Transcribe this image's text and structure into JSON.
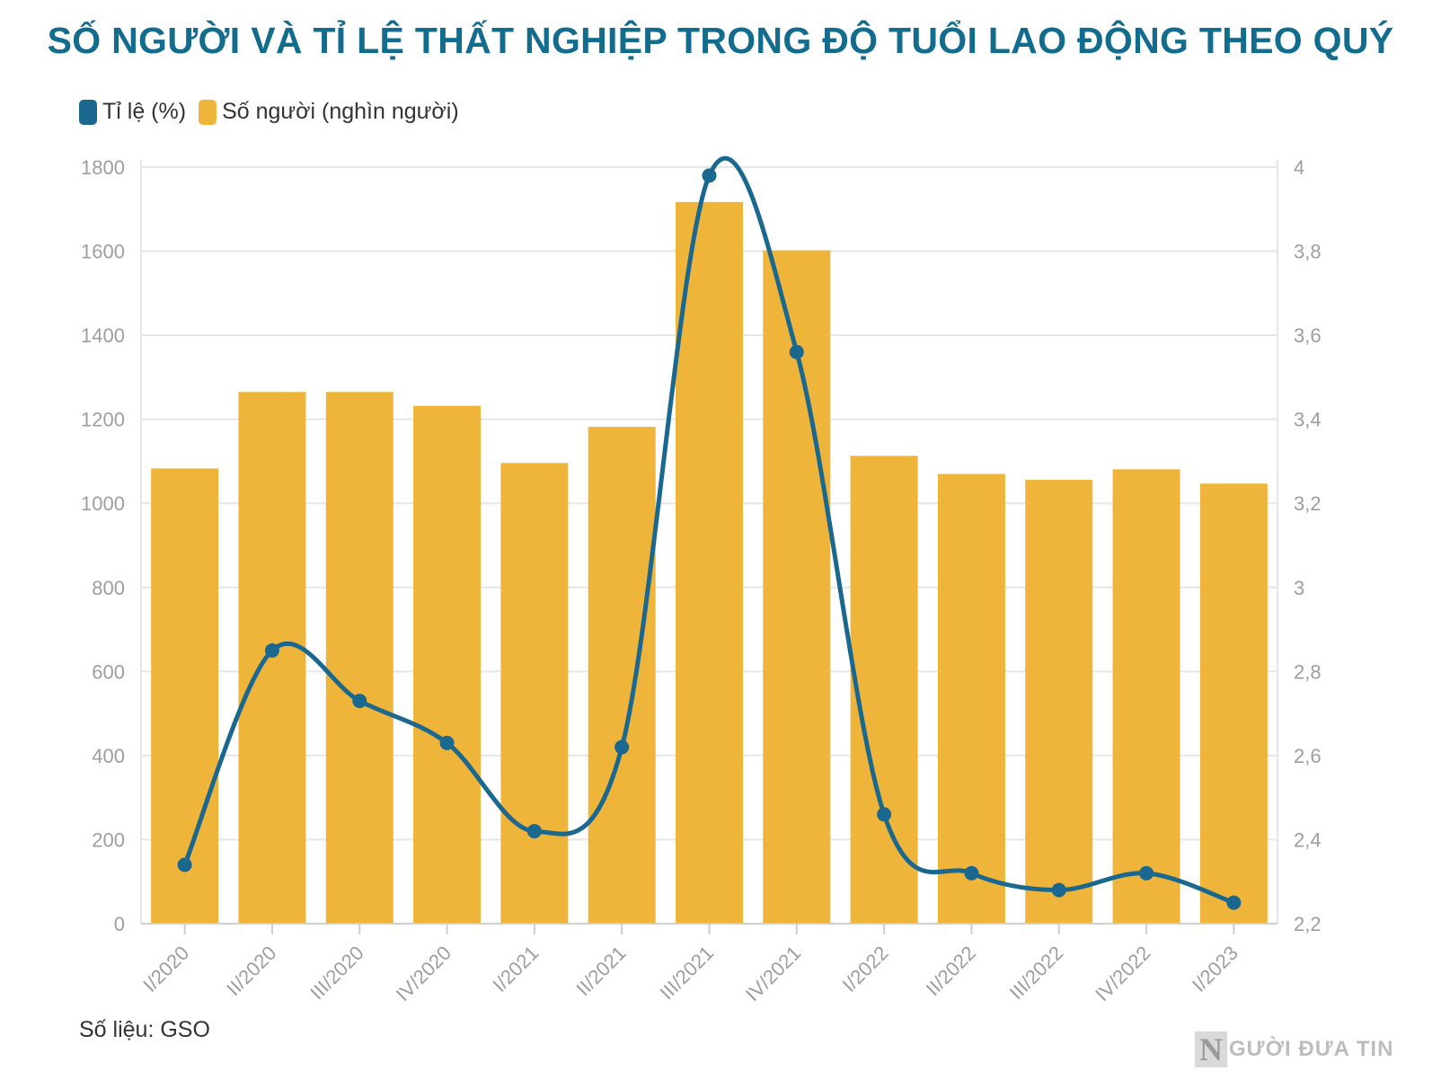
{
  "chart_data": {
    "type": "bar",
    "title": "SỐ NGƯỜI VÀ TỈ LỆ THẤT NGHIỆP TRONG ĐỘ TUỔI LAO ĐỘNG THEO QUÝ",
    "categories": [
      "I/2020",
      "II/2020",
      "III/2020",
      "IV/2020",
      "I/2021",
      "II/2021",
      "III/2021",
      "IV/2021",
      "I/2022",
      "II/2022",
      "III/2022",
      "IV/2022",
      "I/2023"
    ],
    "series": [
      {
        "name": "Số người (nghìn người)",
        "type": "bar",
        "axis": "left",
        "color": "#efb43a",
        "values": [
          1083,
          1265,
          1265,
          1232,
          1096,
          1182,
          1717,
          1602,
          1113,
          1070,
          1056,
          1081,
          1047
        ]
      },
      {
        "name": "Tỉ lệ (%)",
        "type": "line",
        "axis": "right",
        "color": "#1a6790",
        "values": [
          2.34,
          2.85,
          2.73,
          2.63,
          2.42,
          2.62,
          3.98,
          3.56,
          2.46,
          2.32,
          2.28,
          2.32,
          2.25
        ]
      }
    ],
    "y_left": {
      "ylim": [
        0,
        1800
      ],
      "ticks": [
        "0",
        "200",
        "400",
        "600",
        "800",
        "1000",
        "1200",
        "1400",
        "1600",
        "1800"
      ]
    },
    "y_right": {
      "ylim": [
        2.2,
        4.0
      ],
      "ticks": [
        "2,2",
        "2,4",
        "2,6",
        "2,8",
        "3",
        "3,2",
        "3,4",
        "3,6",
        "3,8",
        "4"
      ]
    },
    "grid": true,
    "legend_position": "top-left"
  },
  "source": "Số liệu: GSO",
  "logo": {
    "mark": "N",
    "text": "GƯỜI ĐƯA TIN"
  }
}
